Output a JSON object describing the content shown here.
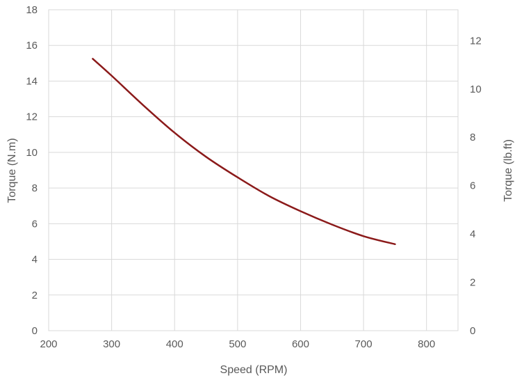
{
  "chart_data": {
    "type": "line",
    "title": "",
    "xlabel": "Speed (RPM)",
    "ylabel": "Torque (N.m)",
    "y2label": "Torque (lb.ft)",
    "xlim": [
      200,
      850
    ],
    "ylim": [
      0,
      18
    ],
    "y2lim": [
      0,
      13.276
    ],
    "xticks": [
      "200",
      "300",
      "400",
      "500",
      "600",
      "700",
      "800"
    ],
    "yticks": [
      "0",
      "2",
      "4",
      "6",
      "8",
      "10",
      "12",
      "14",
      "16",
      "18"
    ],
    "y2ticks": [
      "0",
      "2",
      "4",
      "6",
      "8",
      "10",
      "12"
    ],
    "grid": true,
    "legend": "none",
    "series": [
      {
        "color": "#8b1a1a",
        "x": [
          270,
          300,
          350,
          400,
          450,
          500,
          550,
          600,
          650,
          700,
          750
        ],
        "y": [
          15.25,
          14.3,
          12.65,
          11.1,
          9.75,
          8.6,
          7.55,
          6.7,
          5.95,
          5.3,
          4.85
        ]
      }
    ]
  }
}
